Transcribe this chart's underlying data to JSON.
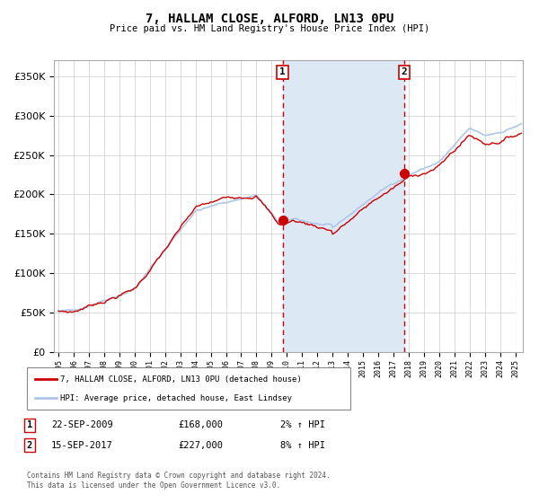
{
  "title": "7, HALLAM CLOSE, ALFORD, LN13 0PU",
  "subtitle": "Price paid vs. HM Land Registry's House Price Index (HPI)",
  "legend_line1": "7, HALLAM CLOSE, ALFORD, LN13 0PU (detached house)",
  "legend_line2": "HPI: Average price, detached house, East Lindsey",
  "annotation1_label": "1",
  "annotation1_date": "22-SEP-2009",
  "annotation1_price": "£168,000",
  "annotation1_hpi": "2% ↑ HPI",
  "annotation2_label": "2",
  "annotation2_date": "15-SEP-2017",
  "annotation2_price": "£227,000",
  "annotation2_hpi": "8% ↑ HPI",
  "footer": "Contains HM Land Registry data © Crown copyright and database right 2024.\nThis data is licensed under the Open Government Licence v3.0.",
  "hpi_line_color": "#aec6e8",
  "price_line_color": "#cc0000",
  "dot_color": "#cc0000",
  "vline_color": "#cc0000",
  "shading_color": "#dce9f5",
  "grid_color": "#cccccc",
  "background_color": "#ffffff",
  "ylim": [
    0,
    370000
  ],
  "xlim_start": 1994.7,
  "xlim_end": 2025.5,
  "purchase1_year": 2009.72,
  "purchase2_year": 2017.71,
  "purchase1_price": 168000,
  "purchase2_price": 227000
}
